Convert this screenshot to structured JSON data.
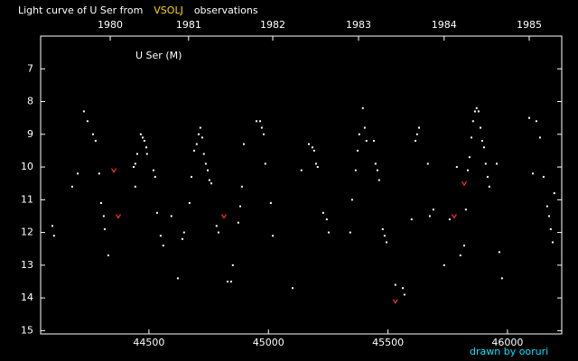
{
  "chart_data": {
    "type": "scatter",
    "title_parts": [
      "Light curve of U Ser from",
      "VSOLJ",
      "observations"
    ],
    "title_colors": [
      "#ffffff",
      "#ffd700",
      "#ffffff"
    ],
    "label": "U Ser (M)",
    "footer": "drawn by ooruri",
    "xlim": [
      44047,
      46227
    ],
    "xticks": [
      44500,
      45000,
      45500,
      46000
    ],
    "year_ticks": [
      {
        "value": 44338,
        "label": "1980"
      },
      {
        "value": 44666,
        "label": "1981"
      },
      {
        "value": 45018,
        "label": "1982"
      },
      {
        "value": 45377,
        "label": "1983"
      },
      {
        "value": 45735,
        "label": "1984"
      },
      {
        "value": 46091,
        "label": "1985"
      }
    ],
    "ylim": [
      15.1,
      6.0
    ],
    "yticks": [
      7,
      8,
      9,
      10,
      11,
      12,
      13,
      14,
      15
    ],
    "series": [
      {
        "color": "#ffffff",
        "marker": "dot",
        "x": [
          44096,
          44103,
          44179,
          44202,
          44228,
          44243,
          44266,
          44277,
          44292,
          44300,
          44311,
          44315,
          44330,
          44436,
          44443,
          44443,
          44451,
          44466,
          44474,
          44481,
          44489,
          44492,
          44519,
          44526,
          44534,
          44549,
          44560,
          44594,
          44621,
          44640,
          44647,
          44670,
          44678,
          44689,
          44700,
          44708,
          44715,
          44723,
          44730,
          44738,
          44746,
          44753,
          44761,
          44783,
          44791,
          44829,
          44844,
          44851,
          44874,
          44882,
          44889,
          44897,
          44950,
          44965,
          44972,
          44980,
          44987,
          45010,
          45018,
          45101,
          45138,
          45169,
          45184,
          45191,
          45199,
          45206,
          45229,
          45244,
          45252,
          45342,
          45350,
          45365,
          45373,
          45380,
          45395,
          45403,
          45410,
          45441,
          45448,
          45456,
          45463,
          45478,
          45486,
          45494,
          45531,
          45562,
          45569,
          45599,
          45615,
          45622,
          45630,
          45667,
          45675,
          45690,
          45735,
          45758,
          45788,
          45803,
          45819,
          45826,
          45834,
          45841,
          45849,
          45856,
          45864,
          45871,
          45879,
          45887,
          45894,
          45902,
          45909,
          45917,
          45924,
          45955,
          45966,
          45977,
          46091,
          46106,
          46121,
          46136,
          46151,
          46166,
          46174,
          46181,
          46189,
          46196
        ],
        "values": [
          11.8,
          12.1,
          10.6,
          10.2,
          8.3,
          8.6,
          9.0,
          9.2,
          10.2,
          11.1,
          11.5,
          11.9,
          12.7,
          10.0,
          9.9,
          10.6,
          9.6,
          9.0,
          9.1,
          9.2,
          9.4,
          9.6,
          10.1,
          10.3,
          11.4,
          12.1,
          12.4,
          11.5,
          13.4,
          12.2,
          12.0,
          11.1,
          10.3,
          9.5,
          9.3,
          9.0,
          8.8,
          9.1,
          9.6,
          9.9,
          10.1,
          10.4,
          10.5,
          11.8,
          12.0,
          13.5,
          13.5,
          13.0,
          11.7,
          11.2,
          10.6,
          9.3,
          8.6,
          8.6,
          8.8,
          9.0,
          9.9,
          11.1,
          12.1,
          13.7,
          10.1,
          9.3,
          9.4,
          9.5,
          9.9,
          10.0,
          11.4,
          11.6,
          12.0,
          12.0,
          11.0,
          10.1,
          9.5,
          9.0,
          8.2,
          8.8,
          9.2,
          9.2,
          9.9,
          10.1,
          10.4,
          11.9,
          12.1,
          12.3,
          13.6,
          13.7,
          13.9,
          11.6,
          9.2,
          9.0,
          8.8,
          9.9,
          11.5,
          11.3,
          13.0,
          11.6,
          10.0,
          12.7,
          12.4,
          11.3,
          10.1,
          9.7,
          9.1,
          8.6,
          8.3,
          8.2,
          8.3,
          8.8,
          9.2,
          9.4,
          9.9,
          10.3,
          10.6,
          9.9,
          12.6,
          13.4,
          8.5,
          10.2,
          8.6,
          9.1,
          10.3,
          11.2,
          11.5,
          11.9,
          12.3,
          10.8
        ]
      },
      {
        "color": "#ff3030",
        "marker": "v",
        "x": [
          44353,
          44372,
          44814,
          45531,
          45777,
          45819
        ],
        "values": [
          10.1,
          11.5,
          11.5,
          14.1,
          11.5,
          10.5
        ]
      }
    ]
  }
}
